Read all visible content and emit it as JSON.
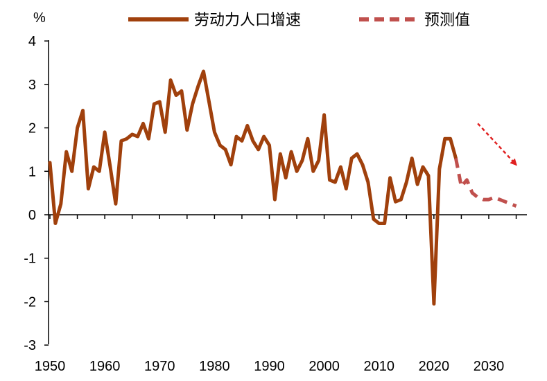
{
  "chart_data": {
    "type": "line",
    "ylabel": "%",
    "ylim": [
      -3,
      4
    ],
    "xlim": [
      1950,
      2036
    ],
    "y_ticks": [
      "4",
      "3",
      "2",
      "1",
      "0",
      "-1",
      "-2",
      "-3"
    ],
    "x_ticks": [
      "1950",
      "1960",
      "1970",
      "1980",
      "1990",
      "2000",
      "2010",
      "2020",
      "2030"
    ],
    "grid": false,
    "legend_position": "top",
    "series": [
      {
        "name": "劳动力人口增速",
        "color": "#A0400C",
        "style": "solid",
        "x": [
          1950,
          1951,
          1952,
          1953,
          1954,
          1955,
          1956,
          1957,
          1958,
          1959,
          1960,
          1961,
          1962,
          1963,
          1964,
          1965,
          1966,
          1967,
          1968,
          1969,
          1970,
          1971,
          1972,
          1973,
          1974,
          1975,
          1976,
          1977,
          1978,
          1979,
          1980,
          1981,
          1982,
          1983,
          1984,
          1985,
          1986,
          1987,
          1988,
          1989,
          1990,
          1991,
          1992,
          1993,
          1994,
          1995,
          1996,
          1997,
          1998,
          1999,
          2000,
          2001,
          2002,
          2003,
          2004,
          2005,
          2006,
          2007,
          2008,
          2009,
          2010,
          2011,
          2012,
          2013,
          2014,
          2015,
          2016,
          2017,
          2018,
          2019,
          2020,
          2021,
          2022,
          2023,
          2024
        ],
        "y": [
          1.2,
          -0.2,
          0.25,
          1.45,
          1.0,
          2.0,
          2.4,
          0.6,
          1.1,
          1.0,
          1.9,
          1.1,
          0.25,
          1.7,
          1.75,
          1.85,
          1.8,
          2.1,
          1.75,
          2.55,
          2.6,
          1.9,
          3.1,
          2.75,
          2.85,
          1.95,
          2.55,
          2.95,
          3.3,
          2.6,
          1.9,
          1.6,
          1.5,
          1.15,
          1.8,
          1.7,
          2.05,
          1.7,
          1.5,
          1.8,
          1.6,
          0.35,
          1.4,
          0.85,
          1.45,
          1.0,
          1.25,
          1.75,
          1.0,
          1.25,
          2.3,
          0.8,
          0.75,
          1.1,
          0.6,
          1.3,
          1.4,
          1.15,
          0.75,
          -0.1,
          -0.2,
          -0.2,
          0.85,
          0.3,
          0.35,
          0.75,
          1.3,
          0.7,
          1.1,
          0.9,
          -2.05,
          1.05,
          1.75,
          1.75,
          1.3
        ]
      },
      {
        "name": "预测值",
        "color": "#C0504D",
        "style": "dashed",
        "x": [
          2024,
          2025,
          2026,
          2027,
          2028,
          2029,
          2030,
          2031,
          2032,
          2033,
          2034,
          2035
        ],
        "y": [
          1.3,
          0.65,
          0.8,
          0.5,
          0.4,
          0.35,
          0.35,
          0.4,
          0.35,
          0.3,
          0.25,
          0.2
        ]
      }
    ],
    "annotations": [
      {
        "type": "arrow",
        "description": "trend-down-arrow",
        "color": "#E02020",
        "from": {
          "x": 2028,
          "y": 2.1
        },
        "to": {
          "x": 2035,
          "y": 1.15
        }
      }
    ]
  }
}
